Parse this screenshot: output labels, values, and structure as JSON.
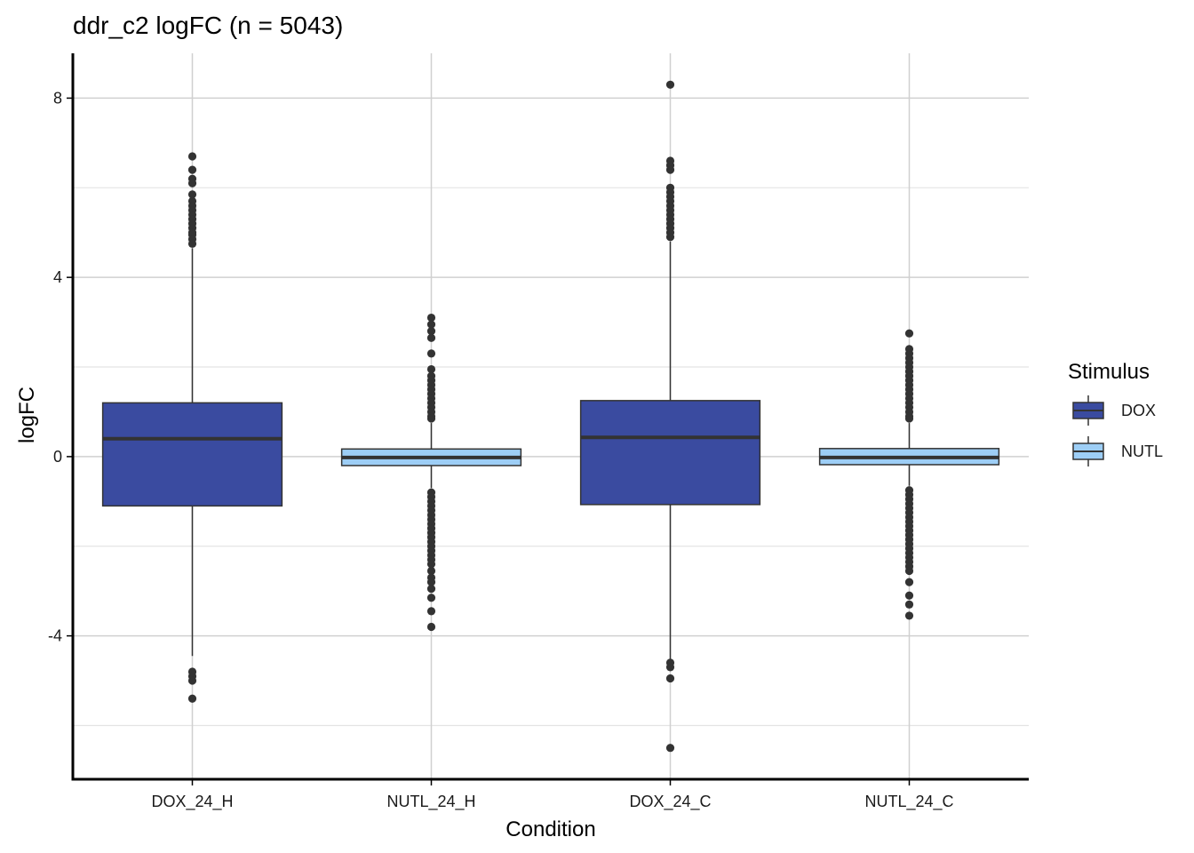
{
  "chart_data": {
    "type": "boxplot",
    "title": "ddr_c2 logFC (n = 5043)",
    "xlabel": "Condition",
    "ylabel": "logFC",
    "ylim": [
      -7.2,
      9.0
    ],
    "yticks": [
      -4,
      0,
      4,
      8
    ],
    "categories": [
      "DOX_24_H",
      "NUTL_24_H",
      "DOX_24_C",
      "NUTL_24_C"
    ],
    "legend": {
      "title": "Stimulus",
      "position": "right",
      "entries": [
        {
          "label": "DOX",
          "color": "#3A4BA0"
        },
        {
          "label": "NUTL",
          "color": "#9DCEF6"
        }
      ]
    },
    "boxes": [
      {
        "category": "DOX_24_H",
        "stimulus": "DOX",
        "q1": -1.1,
        "median": 0.4,
        "q3": 1.2,
        "whisker_low": -4.45,
        "whisker_high": 4.65,
        "outliers": [
          6.7,
          6.4,
          6.2,
          6.1,
          5.85,
          5.7,
          5.6,
          5.5,
          5.4,
          5.3,
          5.2,
          5.1,
          5.0,
          4.95,
          4.85,
          4.75,
          -4.8,
          -4.9,
          -5.0,
          -5.4
        ]
      },
      {
        "category": "NUTL_24_H",
        "stimulus": "NUTL",
        "q1": -0.2,
        "median": -0.02,
        "q3": 0.17,
        "whisker_low": -0.7,
        "whisker_high": 0.75,
        "outliers": [
          3.1,
          2.95,
          2.8,
          2.65,
          2.3,
          1.95,
          1.8,
          1.7,
          1.6,
          1.5,
          1.4,
          1.3,
          1.2,
          1.1,
          1.0,
          0.9,
          0.85,
          -0.8,
          -0.9,
          -1.0,
          -1.1,
          -1.2,
          -1.3,
          -1.4,
          -1.5,
          -1.6,
          -1.7,
          -1.8,
          -1.9,
          -2.0,
          -2.1,
          -2.2,
          -2.3,
          -2.4,
          -2.55,
          -2.7,
          -2.8,
          -2.95,
          -3.15,
          -3.45,
          -3.8
        ]
      },
      {
        "category": "DOX_24_C",
        "stimulus": "DOX",
        "q1": -1.07,
        "median": 0.43,
        "q3": 1.25,
        "whisker_low": -4.55,
        "whisker_high": 4.8,
        "outliers": [
          8.3,
          6.6,
          6.5,
          6.4,
          6.0,
          5.9,
          5.8,
          5.7,
          5.6,
          5.5,
          5.4,
          5.3,
          5.2,
          5.1,
          5.0,
          4.9,
          -4.6,
          -4.7,
          -4.95,
          -6.5
        ]
      },
      {
        "category": "NUTL_24_C",
        "stimulus": "NUTL",
        "q1": -0.18,
        "median": -0.02,
        "q3": 0.18,
        "whisker_low": -0.65,
        "whisker_high": 0.75,
        "outliers": [
          2.75,
          2.4,
          2.3,
          2.2,
          2.1,
          2.0,
          1.9,
          1.8,
          1.7,
          1.6,
          1.5,
          1.4,
          1.3,
          1.2,
          1.1,
          1.0,
          0.9,
          0.85,
          -0.75,
          -0.85,
          -0.95,
          -1.05,
          -1.15,
          -1.25,
          -1.35,
          -1.45,
          -1.55,
          -1.65,
          -1.75,
          -1.85,
          -1.95,
          -2.05,
          -2.15,
          -2.25,
          -2.35,
          -2.45,
          -2.55,
          -2.8,
          -3.1,
          -3.3,
          -3.55
        ]
      }
    ]
  }
}
